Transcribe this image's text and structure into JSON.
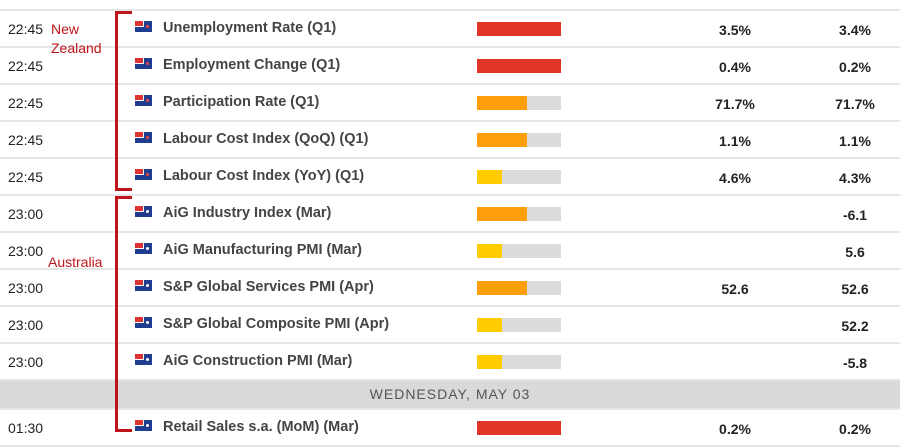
{
  "colors": {
    "high": "#e03427",
    "medium": "#ff9e0d",
    "low": "#ffcc00",
    "empty": "#dcdcdc",
    "annotation": "#c0141b"
  },
  "annotations": {
    "nz": "New Zealand",
    "au": "Australia"
  },
  "groups": [
    {
      "rows": [
        {
          "time": "22:45",
          "country": "NZ",
          "flag": "new-zealand-flag-icon",
          "event": "Unemployment Rate (Q1)",
          "impact": "high",
          "impact_level": 1.0,
          "actual": "3.5%",
          "forecast": "3.4%"
        },
        {
          "time": "22:45",
          "country": "NZ",
          "flag": "new-zealand-flag-icon",
          "event": "Employment Change (Q1)",
          "impact": "high",
          "impact_level": 1.0,
          "actual": "0.4%",
          "forecast": "0.2%"
        },
        {
          "time": "22:45",
          "country": "NZ",
          "flag": "new-zealand-flag-icon",
          "event": "Participation Rate (Q1)",
          "impact": "medium",
          "impact_level": 0.6,
          "actual": "71.7%",
          "forecast": "71.7%"
        },
        {
          "time": "22:45",
          "country": "NZ",
          "flag": "new-zealand-flag-icon",
          "event": "Labour Cost Index (QoQ) (Q1)",
          "impact": "medium",
          "impact_level": 0.6,
          "actual": "1.1%",
          "forecast": "1.1%"
        },
        {
          "time": "22:45",
          "country": "NZ",
          "flag": "new-zealand-flag-icon",
          "event": "Labour Cost Index (YoY) (Q1)",
          "impact": "low",
          "impact_level": 0.3,
          "actual": "4.6%",
          "forecast": "4.3%"
        },
        {
          "time": "23:00",
          "country": "AU",
          "flag": "australia-flag-icon",
          "event": "AiG Industry Index (Mar)",
          "impact": "medium",
          "impact_level": 0.6,
          "actual": "",
          "forecast": "-6.1"
        },
        {
          "time": "23:00",
          "country": "AU",
          "flag": "australia-flag-icon",
          "event": "AiG Manufacturing PMI (Mar)",
          "impact": "low",
          "impact_level": 0.3,
          "actual": "",
          "forecast": "5.6"
        },
        {
          "time": "23:00",
          "country": "AU",
          "flag": "australia-flag-icon",
          "event": "S&P Global Services PMI (Apr)",
          "impact": "medium",
          "impact_level": 0.6,
          "actual": "52.6",
          "forecast": "52.6"
        },
        {
          "time": "23:00",
          "country": "AU",
          "flag": "australia-flag-icon",
          "event": "S&P Global Composite PMI (Apr)",
          "impact": "low",
          "impact_level": 0.3,
          "actual": "",
          "forecast": "52.2"
        },
        {
          "time": "23:00",
          "country": "AU",
          "flag": "australia-flag-icon",
          "event": "AiG Construction PMI (Mar)",
          "impact": "low",
          "impact_level": 0.3,
          "actual": "",
          "forecast": "-5.8"
        }
      ]
    },
    {
      "day": "WEDNESDAY, MAY 03",
      "rows": [
        {
          "time": "01:30",
          "country": "AU",
          "flag": "australia-flag-icon",
          "event": "Retail Sales s.a. (MoM) (Mar)",
          "impact": "high",
          "impact_level": 1.0,
          "actual": "0.2%",
          "forecast": "0.2%"
        }
      ]
    }
  ]
}
